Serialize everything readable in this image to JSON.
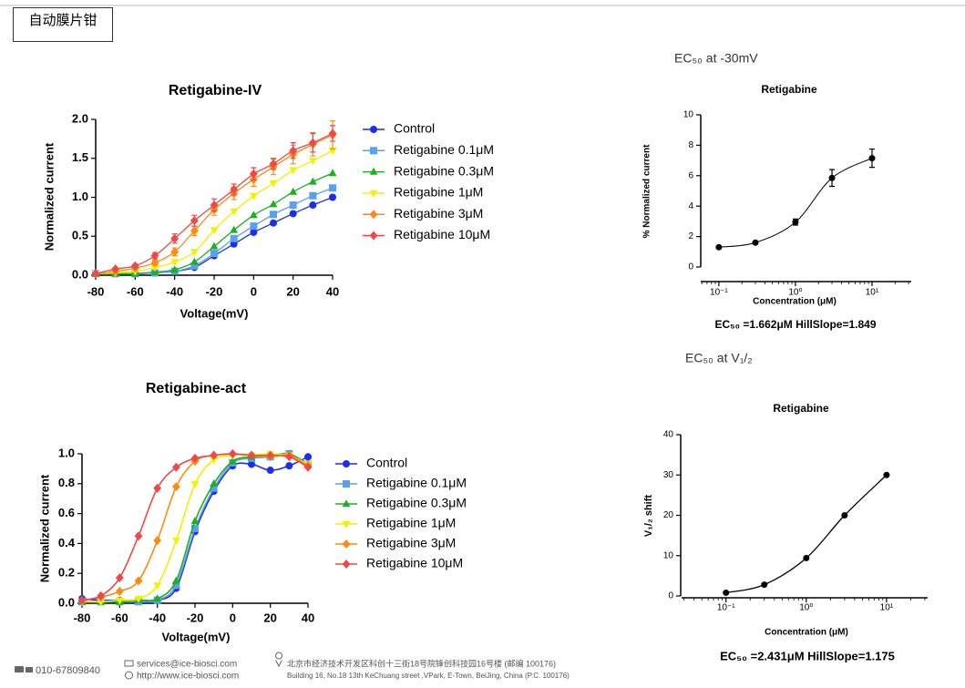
{
  "header": {
    "title": "自动膜片钳"
  },
  "footer": {
    "phone": "010-67809840",
    "email": "services@ice-biosci.com",
    "website": "http://www.ice-biosci.com",
    "address_cn": "北京市经济技术开发区科创十三街18号院锋创科技园16号楼 (邮编 100176)",
    "address_en": "Building 16, No.18 13th KeChuang street ,VPark, E-Town, BeiJing, China  (P.C. 100176)"
  },
  "chart_data": [
    {
      "type": "line",
      "title": "Retigabine-IV",
      "xlabel": "Voltage(mV)",
      "ylabel": "Normalized current",
      "x": [
        -80,
        -70,
        -60,
        -50,
        -40,
        -30,
        -20,
        -10,
        0,
        10,
        20,
        30,
        40
      ],
      "xlim": [
        -80,
        40
      ],
      "xticks": [
        -80,
        -60,
        -40,
        -20,
        0,
        20,
        40
      ],
      "ylim": [
        0,
        2
      ],
      "yticks": [
        {
          "value": 0,
          "label": "0.0"
        },
        0.5,
        {
          "value": 1,
          "label": "1.0"
        },
        1.5,
        {
          "value": 2,
          "label": "2.0"
        }
      ],
      "legend": "right",
      "series": [
        {
          "name": "Control",
          "color": "#1c2cf0",
          "marker": "circle",
          "values": [
            0.02,
            0.02,
            0.02,
            0.03,
            0.05,
            0.1,
            0.25,
            0.4,
            0.55,
            0.67,
            0.79,
            0.9,
            1.0
          ]
        },
        {
          "name": "Retigabine 0.1μM",
          "color": "#5aa0f0",
          "marker": "square",
          "values": [
            0.02,
            0.02,
            0.02,
            0.03,
            0.05,
            0.12,
            0.28,
            0.47,
            0.63,
            0.78,
            0.9,
            1.02,
            1.12
          ]
        },
        {
          "name": "Retigabine 0.3μM",
          "color": "#1fb01f",
          "marker": "triangle",
          "values": [
            0.02,
            0.02,
            0.02,
            0.04,
            0.07,
            0.17,
            0.37,
            0.58,
            0.77,
            0.91,
            1.07,
            1.2,
            1.31
          ]
        },
        {
          "name": "Retigabine 1μM",
          "color": "#f2f200",
          "marker": "triangle-down",
          "values": [
            0.02,
            0.03,
            0.05,
            0.1,
            0.17,
            0.3,
            0.58,
            0.82,
            1.02,
            1.18,
            1.35,
            1.47,
            1.6
          ]
        },
        {
          "name": "Retigabine 3μM",
          "color": "#ff8a10",
          "marker": "diamond",
          "values": [
            0.02,
            0.05,
            0.09,
            0.16,
            0.3,
            0.57,
            0.84,
            1.05,
            1.23,
            1.39,
            1.55,
            1.68,
            1.8
          ],
          "errors": [
            0,
            0.01,
            0.02,
            0.03,
            0.05,
            0.06,
            0.07,
            0.08,
            0.09,
            0.1,
            0.12,
            0.15,
            0.18
          ]
        },
        {
          "name": "Retigabine 10μM",
          "color": "#f04848",
          "marker": "diamond",
          "values": [
            0.02,
            0.08,
            0.12,
            0.25,
            0.47,
            0.7,
            0.9,
            1.1,
            1.3,
            1.43,
            1.6,
            1.7,
            1.82
          ],
          "errors": [
            0,
            0.01,
            0.02,
            0.04,
            0.06,
            0.07,
            0.08,
            0.07,
            0.08,
            0.07,
            0.1,
            0.12,
            0.1
          ]
        }
      ]
    },
    {
      "type": "line",
      "heading": "EC₅₀ at -30mV",
      "title": "Retigabine",
      "xlabel": "Concentration (μM)",
      "ylabel": "% Normalized current",
      "annotation": "EC₅₀ =1.662μM    HillSlope=1.849",
      "xscale": "log",
      "x": [
        0.1,
        0.3,
        1,
        3,
        10
      ],
      "xlim": [
        0.058,
        32.5
      ],
      "xticks": [
        {
          "value": 0.1,
          "label": "10⁻¹"
        },
        {
          "value": 1,
          "label": "10⁰"
        },
        {
          "value": 10,
          "label": "10¹"
        }
      ],
      "ylim": [
        0,
        10
      ],
      "yticks": [
        0,
        2,
        4,
        6,
        8,
        10
      ],
      "series": [
        {
          "color": "#000000",
          "marker": "circle",
          "values": [
            1.3,
            1.6,
            2.95,
            5.85,
            7.15
          ],
          "errors": [
            0.05,
            0.05,
            0.2,
            0.55,
            0.6
          ]
        }
      ]
    },
    {
      "type": "line",
      "title": "Retigabine-act",
      "xlabel": "Voltage(mV)",
      "ylabel": "Normalized current",
      "x": [
        -80,
        -70,
        -60,
        -50,
        -40,
        -30,
        -20,
        -10,
        0,
        10,
        20,
        30,
        40
      ],
      "xlim": [
        -80,
        40
      ],
      "xticks": [
        -80,
        -60,
        -40,
        -20,
        0,
        20,
        40
      ],
      "ylim": [
        0,
        1
      ],
      "yticks": [
        {
          "value": 0,
          "label": "0.0"
        },
        0.2,
        0.4,
        0.6,
        0.8,
        {
          "value": 1,
          "label": "1.0"
        }
      ],
      "legend": "right",
      "series": [
        {
          "name": "Control",
          "color": "#1c2cf0",
          "marker": "circle",
          "values": [
            0.03,
            0.02,
            0.02,
            0.02,
            0.02,
            0.1,
            0.48,
            0.75,
            0.92,
            0.93,
            0.89,
            0.92,
            0.98
          ]
        },
        {
          "name": "Retigabine 0.1μM",
          "color": "#5aa0f0",
          "marker": "square",
          "values": [
            0.01,
            0.01,
            0.01,
            0.01,
            0.02,
            0.12,
            0.5,
            0.77,
            0.94,
            0.97,
            0.98,
            1.0,
            0.93
          ]
        },
        {
          "name": "Retigabine 0.3μM",
          "color": "#1fb01f",
          "marker": "triangle",
          "values": [
            0.01,
            0.01,
            0.01,
            0.02,
            0.03,
            0.15,
            0.55,
            0.8,
            0.95,
            0.98,
            0.99,
            1.0,
            0.93
          ]
        },
        {
          "name": "Retigabine 1μM",
          "color": "#f2f200",
          "marker": "triangle-down",
          "values": [
            0.01,
            0.01,
            0.02,
            0.03,
            0.12,
            0.42,
            0.8,
            0.96,
            0.99,
            0.99,
            1.0,
            0.99,
            0.93
          ]
        },
        {
          "name": "Retigabine 3μM",
          "color": "#ff8a10",
          "marker": "diamond",
          "values": [
            0.02,
            0.04,
            0.08,
            0.15,
            0.42,
            0.78,
            0.95,
            0.99,
            1.0,
            0.99,
            0.98,
            0.99,
            0.92
          ]
        },
        {
          "name": "Retigabine 10μM",
          "color": "#f04848",
          "marker": "diamond",
          "values": [
            0.02,
            0.05,
            0.17,
            0.45,
            0.77,
            0.91,
            0.97,
            0.99,
            1.0,
            0.99,
            0.99,
            0.98,
            0.91
          ]
        }
      ]
    },
    {
      "type": "line",
      "heading": "EC₅₀ at V₁/₂",
      "title": "Retigabine",
      "xlabel": "Concentration (μM)",
      "ylabel": "V₁/₂ shift",
      "annotation": "EC₅₀ =2.431μM    HillSlope=1.175",
      "xscale": "log",
      "x": [
        0.1,
        0.3,
        1,
        3,
        10
      ],
      "xlim": [
        0.028,
        32.5
      ],
      "xticks": [
        {
          "value": 0.1,
          "label": "10⁻¹"
        },
        {
          "value": 1,
          "label": "10⁰"
        },
        {
          "value": 10,
          "label": "10¹"
        }
      ],
      "ylim": [
        0,
        40
      ],
      "yticks": [
        0,
        10,
        20,
        30,
        40
      ],
      "series": [
        {
          "color": "#000000",
          "marker": "circle",
          "values": [
            0.8,
            2.8,
            9.4,
            20,
            30
          ]
        }
      ]
    }
  ]
}
